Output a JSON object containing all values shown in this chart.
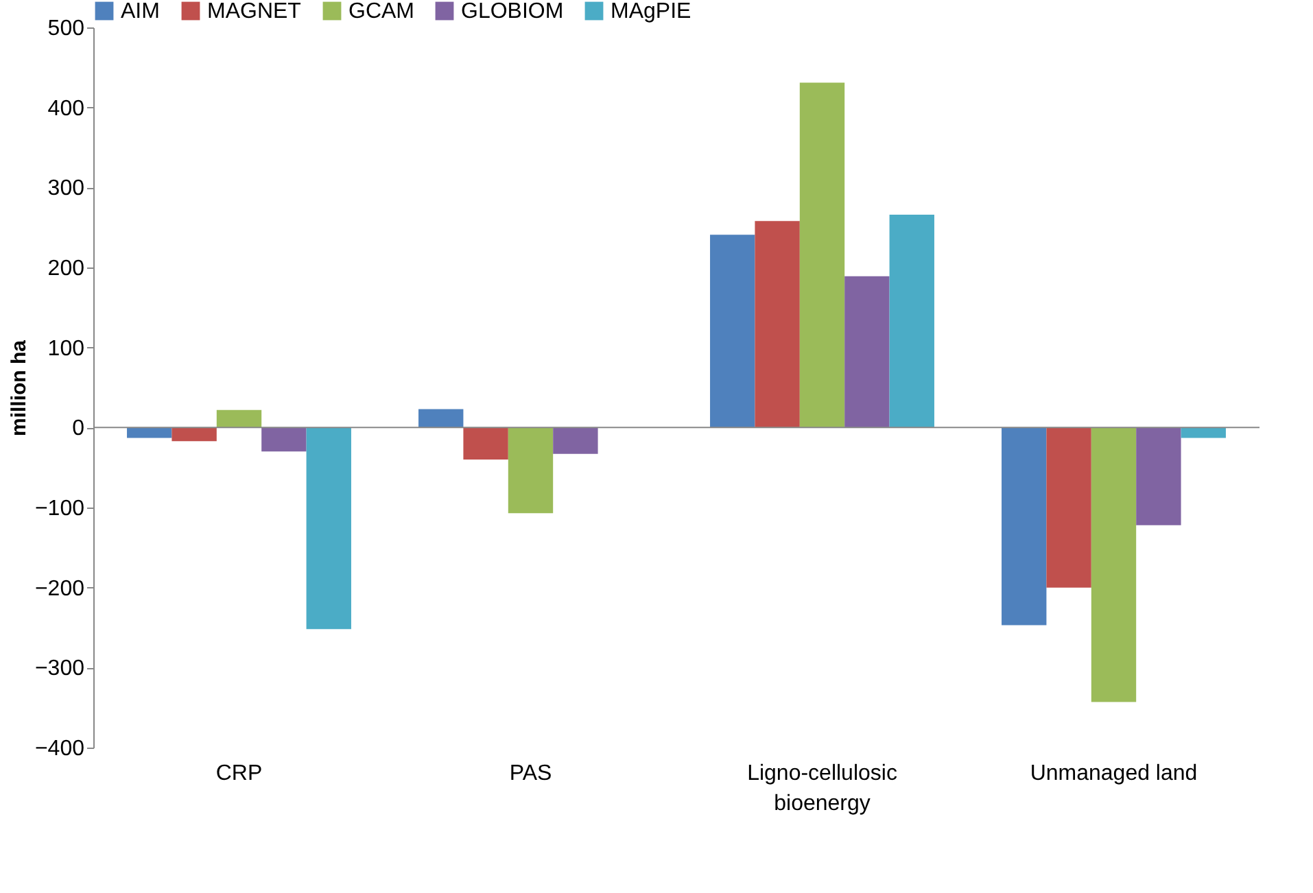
{
  "chart_data": {
    "type": "bar",
    "ylabel": "million ha",
    "categories": [
      "CRP",
      "PAS",
      "Ligno-cellulosic bioenergy",
      "Unmanaged land"
    ],
    "series": [
      {
        "name": "AIM",
        "color": "#4f81bd",
        "values": [
          -13,
          23,
          241,
          -247
        ]
      },
      {
        "name": "MAGNET",
        "color": "#c0504d",
        "values": [
          -17,
          -40,
          258,
          -200
        ]
      },
      {
        "name": "GCAM",
        "color": "#9bbb59",
        "values": [
          22,
          -107,
          431,
          -343
        ]
      },
      {
        "name": "GLOBIOM",
        "color": "#8064a2",
        "values": [
          -30,
          -33,
          189,
          -122
        ]
      },
      {
        "name": "MAgPIE",
        "color": "#4bacc6",
        "values": [
          -252,
          null,
          266,
          -13
        ]
      }
    ],
    "ylim": [
      -400,
      500
    ],
    "yticks": [
      -400,
      -300,
      -200,
      -100,
      0,
      100,
      200,
      300,
      400,
      500
    ],
    "legend": "top"
  }
}
